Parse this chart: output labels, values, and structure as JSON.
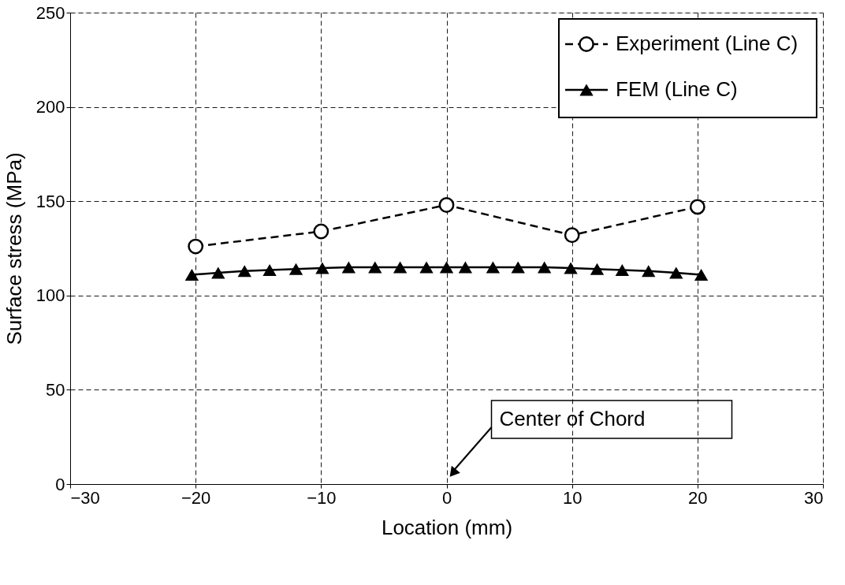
{
  "chart_data": {
    "type": "line",
    "xlabel": "Location (mm)",
    "ylabel": "Surface stress (MPa)",
    "xlim": [
      -30,
      30
    ],
    "xticks": [
      -30,
      -20,
      -10,
      0,
      10,
      20,
      30
    ],
    "ylim": [
      0,
      250
    ],
    "yticks": [
      0,
      50,
      100,
      150,
      200,
      250
    ],
    "grid": true,
    "legend": "top right",
    "series": [
      {
        "name": "Experiment (Line C)",
        "color": "#000000",
        "marker": "circle",
        "line_style": "dashed",
        "x": [
          -20,
          -10,
          0,
          10,
          20
        ],
        "values": [
          126,
          134,
          148,
          132,
          147
        ]
      },
      {
        "name": "FEM (Line C)",
        "color": "#000000",
        "marker": "triangle",
        "line_style": "solid",
        "x": [
          -20.3,
          -18.2,
          -16.1,
          -14.1,
          -12.0,
          -9.9,
          -7.8,
          -5.7,
          -3.7,
          -1.6,
          0,
          1.5,
          3.7,
          5.7,
          7.8,
          9.9,
          12.0,
          14.0,
          16.1,
          18.3,
          20.3
        ],
        "values": [
          111,
          112,
          113,
          113.5,
          114,
          114.5,
          115,
          115,
          115,
          115,
          115,
          115,
          115,
          115,
          115,
          114.5,
          114,
          113.5,
          113,
          112,
          111
        ]
      }
    ],
    "annotations": [
      "Center of Chord"
    ]
  }
}
